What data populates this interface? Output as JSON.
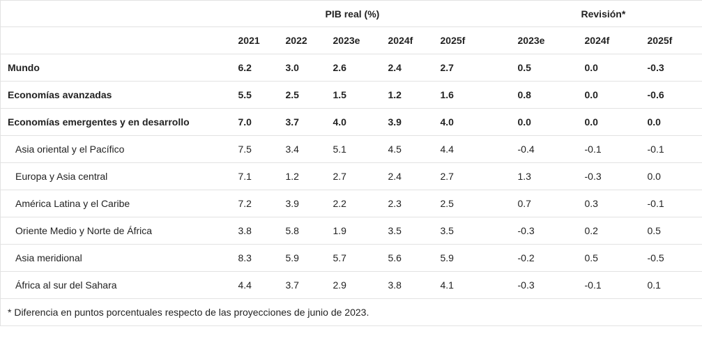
{
  "table": {
    "group_headers": {
      "pib": "PIB real (%)",
      "revision": "Revisión*"
    },
    "columns": [
      "2021",
      "2022",
      "2023e",
      "2024f",
      "2025f",
      "2023e",
      "2024f",
      "2025f"
    ],
    "rows": [
      {
        "label": "Mundo",
        "values": [
          "6.2",
          "3.0",
          "2.6",
          "2.4",
          "2.7",
          "0.5",
          "0.0",
          "-0.3"
        ]
      },
      {
        "label": "Economías avanzadas",
        "values": [
          "5.5",
          "2.5",
          "1.5",
          "1.2",
          "1.6",
          "0.8",
          "0.0",
          "-0.6"
        ]
      },
      {
        "label": "Economías emergentes y en desarrollo",
        "values": [
          "7.0",
          "3.7",
          "4.0",
          "3.9",
          "4.0",
          "0.0",
          "0.0",
          "0.0"
        ]
      },
      {
        "label": "Asia oriental y el Pacífico",
        "values": [
          "7.5",
          "3.4",
          "5.1",
          "4.5",
          "4.4",
          "-0.4",
          "-0.1",
          "-0.1"
        ]
      },
      {
        "label": "Europa y Asia central",
        "values": [
          "7.1",
          "1.2",
          "2.7",
          "2.4",
          "2.7",
          "1.3",
          "-0.3",
          "0.0"
        ]
      },
      {
        "label": "América Latina y el Caribe",
        "values": [
          "7.2",
          "3.9",
          "2.2",
          "2.3",
          "2.5",
          "0.7",
          "0.3",
          "-0.1"
        ]
      },
      {
        "label": "Oriente Medio y Norte de África",
        "values": [
          "3.8",
          "5.8",
          "1.9",
          "3.5",
          "3.5",
          "-0.3",
          "0.2",
          "0.5"
        ]
      },
      {
        "label": "Asia meridional",
        "values": [
          "8.3",
          "5.9",
          "5.7",
          "5.6",
          "5.9",
          "-0.2",
          "0.5",
          "-0.5"
        ]
      },
      {
        "label": "África al sur del Sahara",
        "values": [
          "4.4",
          "3.7",
          "2.9",
          "3.8",
          "4.1",
          "-0.3",
          "-0.1",
          "0.1"
        ]
      }
    ],
    "footnote": "* Diferencia en puntos porcentuales respecto de las proyecciones de junio de 2023."
  }
}
